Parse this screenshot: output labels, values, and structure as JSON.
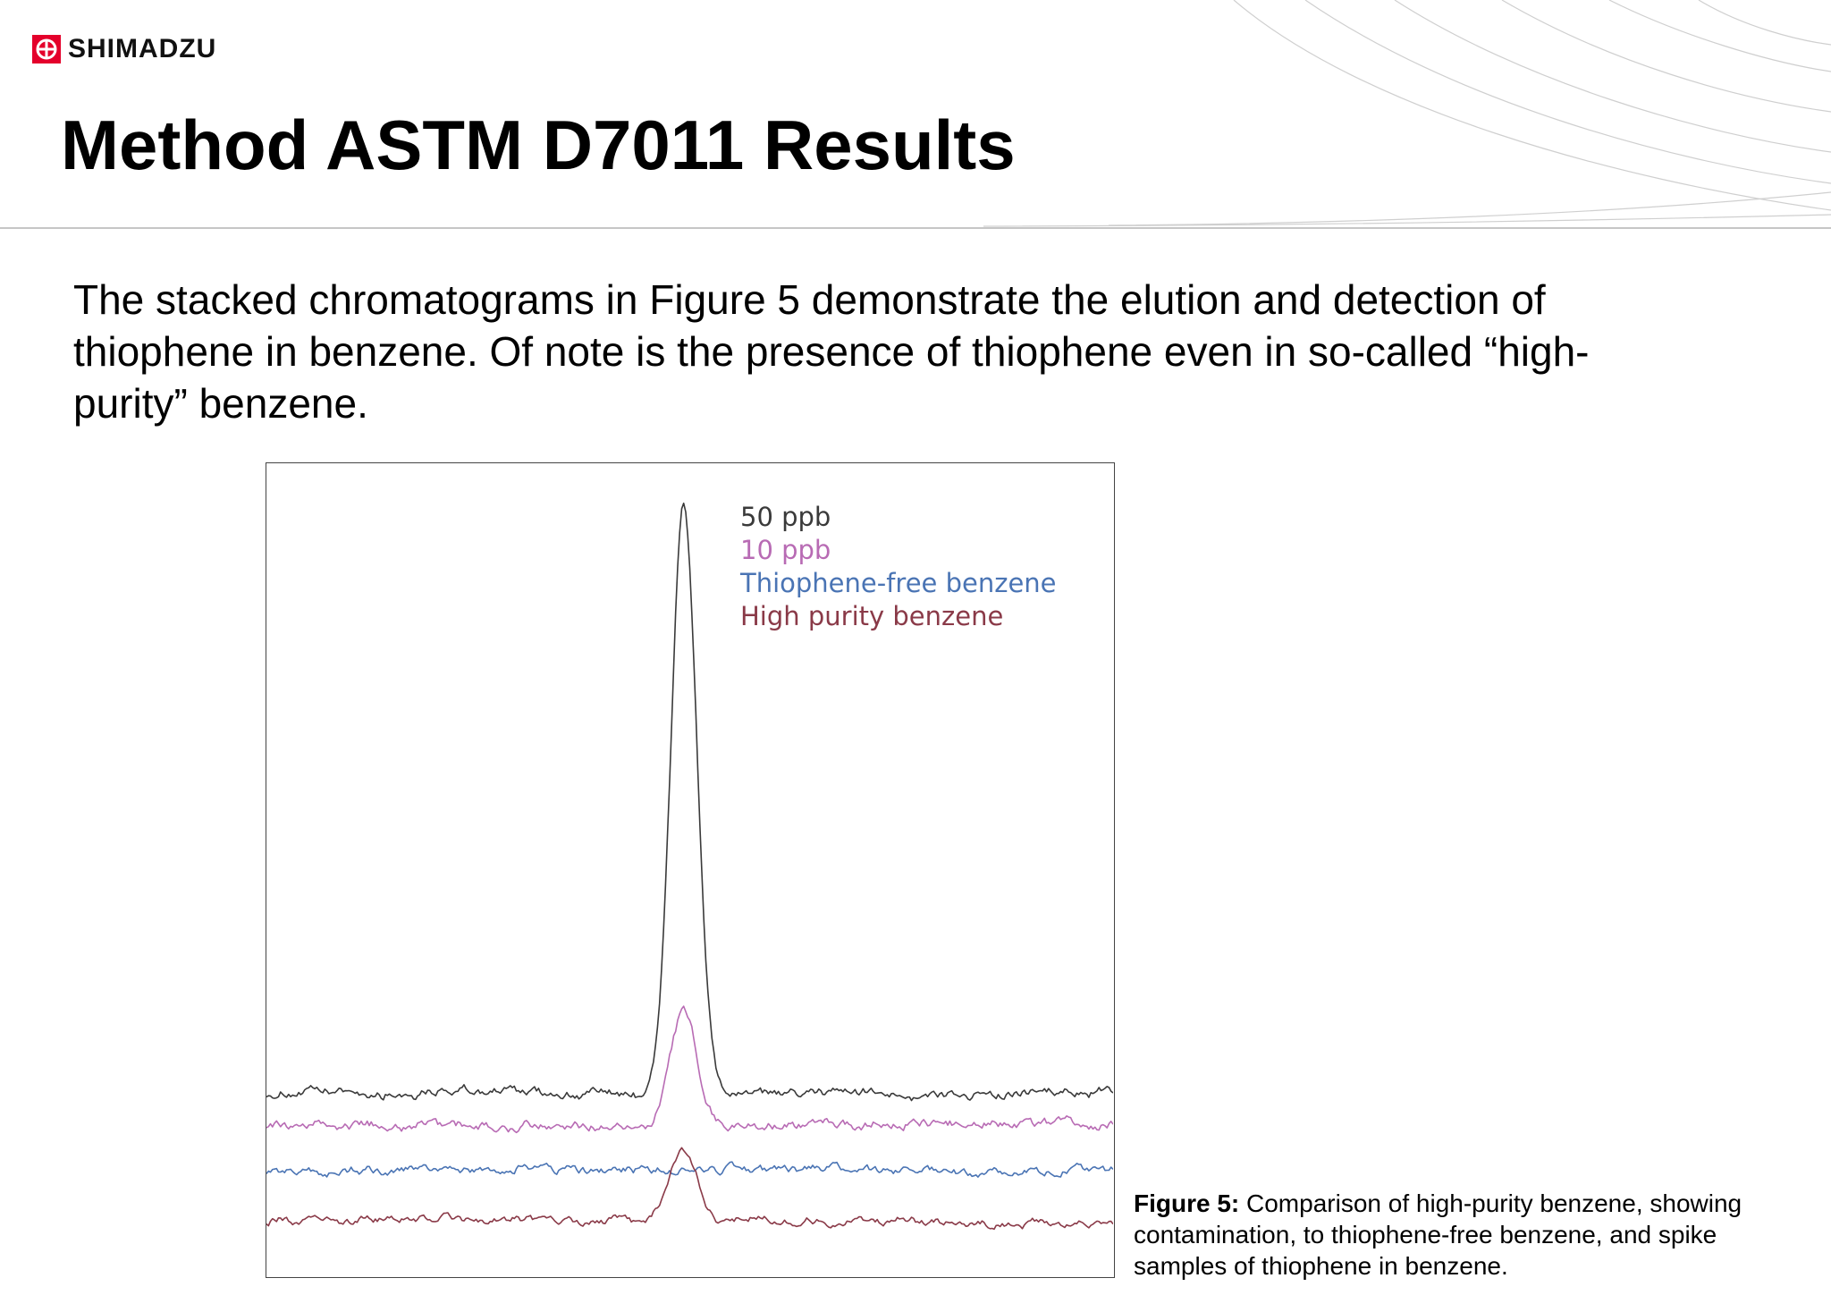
{
  "brand": {
    "logo_text": "SHIMADZU",
    "logo_color": "#e4002b"
  },
  "slide": {
    "title": "Method ASTM D7011 Results",
    "body": "The stacked chromatograms in Figure 5 demonstrate the elution and detection of thiophene in benzene. Of note is the presence of thiophene even in so-called “high-purity” benzene."
  },
  "caption": {
    "lead": "Figure 5:",
    "text": " Comparison of high-purity benzene, showing contamination, to thiophene-free benzene, and spike samples of thiophene in benzene."
  },
  "chart_data": {
    "type": "line",
    "title": "",
    "xlabel": "",
    "ylabel": "",
    "grid": false,
    "stacked": true,
    "axes_visible": false,
    "legend_placement": "top-center",
    "x_range": [
      0,
      100
    ],
    "y_range": [
      0,
      100
    ],
    "peak_center_x": 49.3,
    "series": [
      {
        "name": "50 ppb",
        "color": "#3a3a3a",
        "baseline": 22.5,
        "peak_height": 72.5,
        "peak_width": 1.5,
        "noise": 0.6
      },
      {
        "name": "10 ppb",
        "color": "#b86bb4",
        "baseline": 18.6,
        "peak_height": 14.0,
        "peak_width": 1.6,
        "noise": 0.6
      },
      {
        "name": "Thiophene-free benzene",
        "color": "#4a74b4",
        "baseline": 13.0,
        "peak_height": 0.0,
        "peak_width": 1.6,
        "noise": 0.55
      },
      {
        "name": "High purity benzene",
        "color": "#8a3a48",
        "baseline": 6.7,
        "peak_height": 8.5,
        "peak_width": 1.7,
        "noise": 0.5
      }
    ]
  }
}
